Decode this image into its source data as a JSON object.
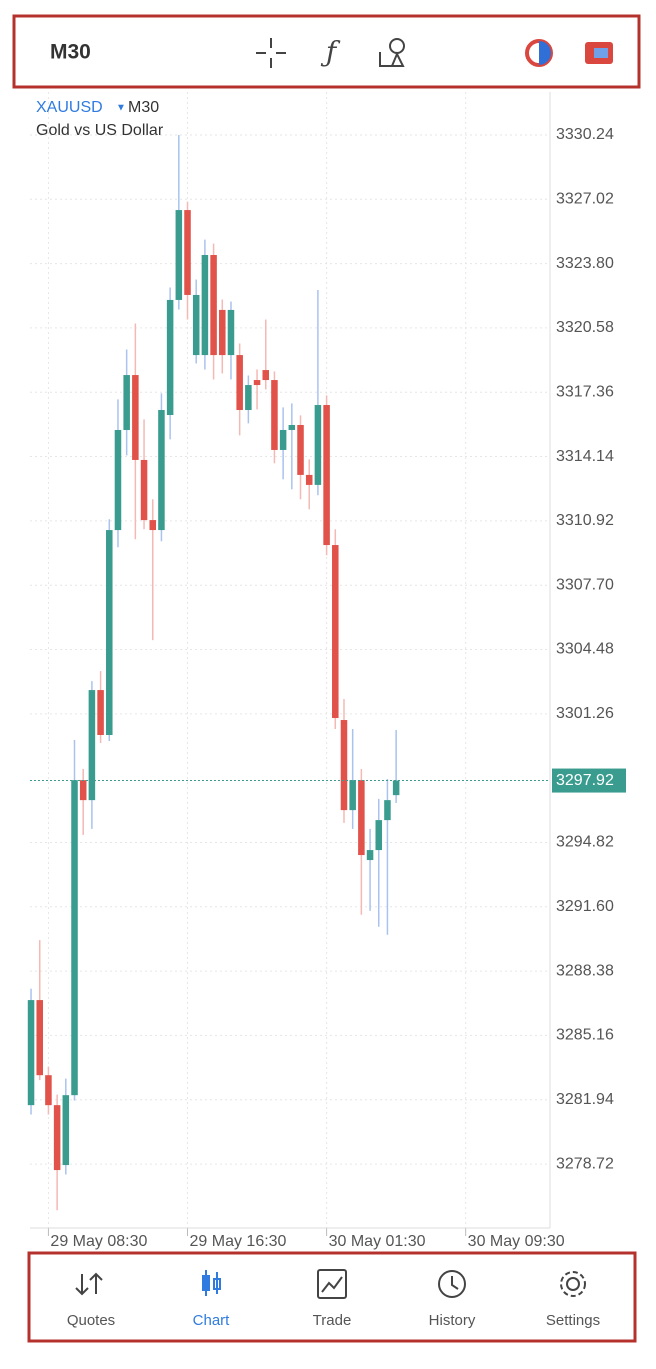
{
  "toolbar": {
    "timeframe": "M30"
  },
  "chart_data": {
    "type": "candlestick",
    "symbol": "XAUUSD",
    "timeframe": "M30",
    "description": "Gold vs US Dollar",
    "up_color": "#3a9c8f",
    "down_color": "#e0524a",
    "up_wick_color": "#a9c3ee",
    "down_wick_color": "#f3b9b5",
    "grid": true,
    "open": [
      3281.67,
      3286.93,
      3283.17,
      3281.67,
      3278.67,
      3282.17,
      3297.94,
      3296.94,
      3302.45,
      3300.2,
      3310.46,
      3315.47,
      3318.22,
      3313.97,
      3310.96,
      3310.46,
      3316.22,
      3321.98,
      3326.48,
      3319.22,
      3319.22,
      3324.23,
      3321.48,
      3319.22,
      3319.22,
      3316.47,
      3317.97,
      3318.47,
      3317.97,
      3314.47,
      3315.47,
      3315.72,
      3313.22,
      3312.72,
      3316.72,
      3309.71,
      3300.95,
      3296.44,
      3297.94,
      3293.94,
      3294.44,
      3295.94,
      3297.19
    ],
    "high": [
      3287.5,
      3289.93,
      3283.6,
      3282.2,
      3283.0,
      3299.95,
      3298.5,
      3302.9,
      3303.4,
      3311.0,
      3317.0,
      3319.5,
      3320.8,
      3316.0,
      3312.0,
      3317.3,
      3322.6,
      3330.24,
      3326.9,
      3323.0,
      3325.0,
      3324.8,
      3322.0,
      3321.9,
      3319.8,
      3318.2,
      3318.5,
      3321.0,
      3318.4,
      3316.6,
      3316.8,
      3316.2,
      3314.0,
      3322.48,
      3317.2,
      3310.5,
      3302.0,
      3300.5,
      3298.5,
      3295.5,
      3297.0,
      3298.0,
      3300.45
    ],
    "low": [
      3281.2,
      3282.92,
      3281.2,
      3276.41,
      3278.2,
      3281.9,
      3295.2,
      3295.5,
      3299.8,
      3299.9,
      3309.6,
      3314.2,
      3310.0,
      3310.5,
      3304.95,
      3309.9,
      3315.0,
      3321.5,
      3321.0,
      3318.8,
      3318.5,
      3318.0,
      3318.3,
      3318.0,
      3315.2,
      3315.8,
      3316.5,
      3317.5,
      3313.8,
      3313.0,
      3312.5,
      3312.0,
      3311.5,
      3312.2,
      3309.2,
      3300.5,
      3295.8,
      3295.5,
      3291.2,
      3291.4,
      3290.6,
      3290.2,
      3296.8
    ],
    "close": [
      3286.93,
      3283.17,
      3281.67,
      3278.42,
      3282.17,
      3297.94,
      3296.94,
      3302.45,
      3300.2,
      3310.46,
      3315.47,
      3318.22,
      3313.97,
      3310.96,
      3310.46,
      3316.47,
      3321.98,
      3326.48,
      3322.23,
      3322.23,
      3324.23,
      3319.22,
      3319.22,
      3321.48,
      3316.47,
      3317.72,
      3317.72,
      3317.97,
      3314.47,
      3315.47,
      3315.72,
      3313.22,
      3312.72,
      3316.72,
      3309.71,
      3301.05,
      3296.44,
      3297.94,
      3294.19,
      3294.44,
      3295.94,
      3296.94,
      3297.92
    ],
    "last_price": 3297.92,
    "ylim": [
      3275.52,
      3332.39
    ],
    "yticks": [
      3330.24,
      3327.02,
      {
        "value": 3323.8,
        "label": "3323.80"
      },
      3320.58,
      3317.36,
      3314.14,
      3310.92,
      {
        "value": 3307.7,
        "label": "3307.70"
      },
      3304.48,
      3301.26,
      3294.82,
      {
        "value": 3291.6,
        "label": "3291.60"
      },
      3288.38,
      3285.16,
      3281.94,
      3278.72
    ],
    "xlim": [
      -0.12,
      59.7
    ],
    "xticks": [
      {
        "value": 2,
        "label": "29 May 08:30"
      },
      {
        "value": 18,
        "label": "29 May 16:30"
      },
      {
        "value": 34,
        "label": "30 May 01:30"
      },
      {
        "value": 50,
        "label": "30 May 09:30"
      }
    ]
  },
  "nav": {
    "items": [
      "Quotes",
      "Chart",
      "Trade",
      "History",
      "Settings"
    ],
    "active": 1
  }
}
